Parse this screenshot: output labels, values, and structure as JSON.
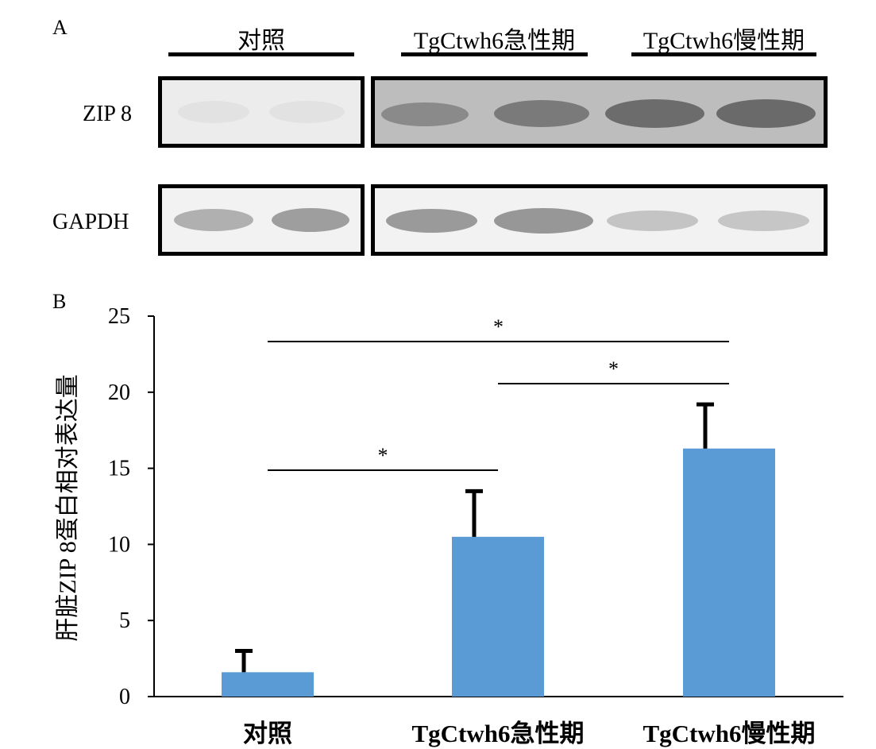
{
  "panel_a": {
    "letter": "A",
    "groups": [
      "对照",
      "TgCtwh6急性期",
      "TgCtwh6慢性期"
    ],
    "row_labels": [
      "ZIP 8",
      "GAPDH"
    ]
  },
  "panel_b": {
    "letter": "B"
  },
  "colors": {
    "bar": "#5b9bd5",
    "axis": "#000000"
  },
  "chart_data": {
    "type": "bar",
    "categories": [
      "对照",
      "TgCtwh6急性期",
      "TgCtwh6慢性期"
    ],
    "values": [
      1.6,
      10.5,
      16.3
    ],
    "errors": [
      1.4,
      3.0,
      2.9
    ],
    "ylabel": "肝脏ZIP 8蛋白相对表达量",
    "ylim": [
      0,
      25
    ],
    "yticks": [
      0,
      5,
      10,
      15,
      20,
      25
    ],
    "ytick_labels": [
      "0",
      "5",
      "10",
      "15",
      "20",
      "25"
    ],
    "grid": false,
    "significance": [
      {
        "from": 0,
        "to": 1,
        "label": "*"
      },
      {
        "from": 0,
        "to": 2,
        "label": "*"
      },
      {
        "from": 1,
        "to": 2,
        "label": "*"
      }
    ]
  }
}
